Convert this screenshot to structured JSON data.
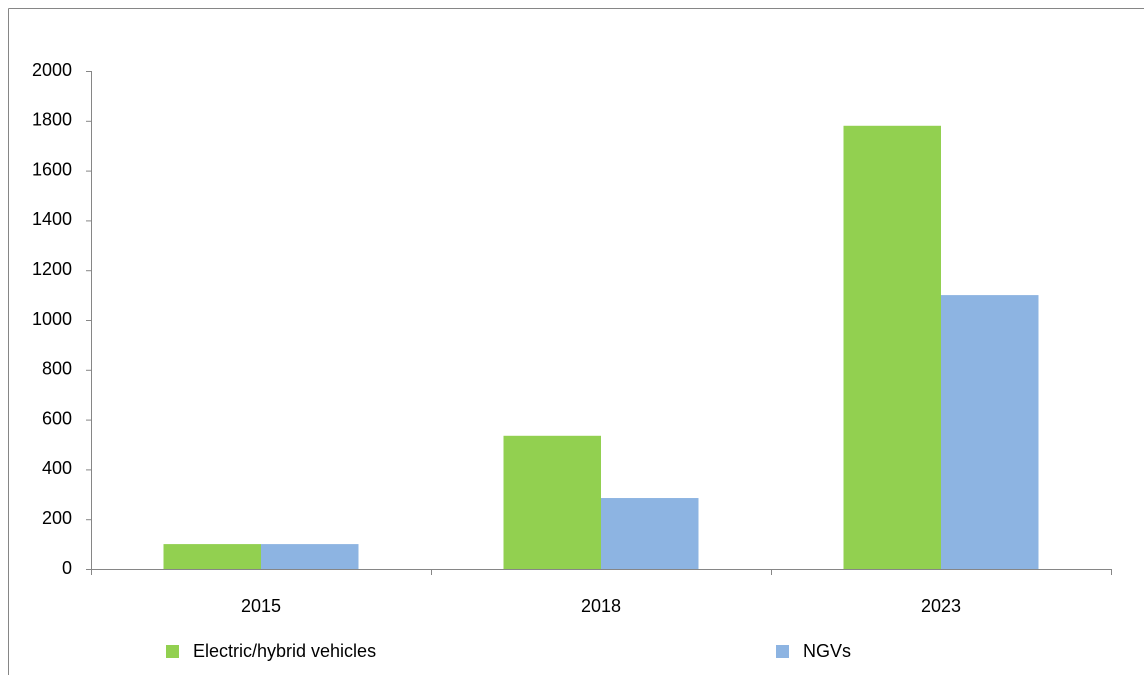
{
  "chart_data": {
    "type": "bar",
    "categories": [
      "2015",
      "2018",
      "2023"
    ],
    "series": [
      {
        "name": "Electric/hybrid vehicles",
        "color": "#92d050",
        "values": [
          100,
          535,
          1780
        ]
      },
      {
        "name": "NGVs",
        "color": "#8db4e2",
        "values": [
          100,
          285,
          1100
        ]
      }
    ],
    "ylim": [
      0,
      2000
    ],
    "yticks": [
      0,
      200,
      400,
      600,
      800,
      1000,
      1200,
      1400,
      1600,
      1800,
      2000
    ],
    "grid": false,
    "legend": "bottom"
  }
}
